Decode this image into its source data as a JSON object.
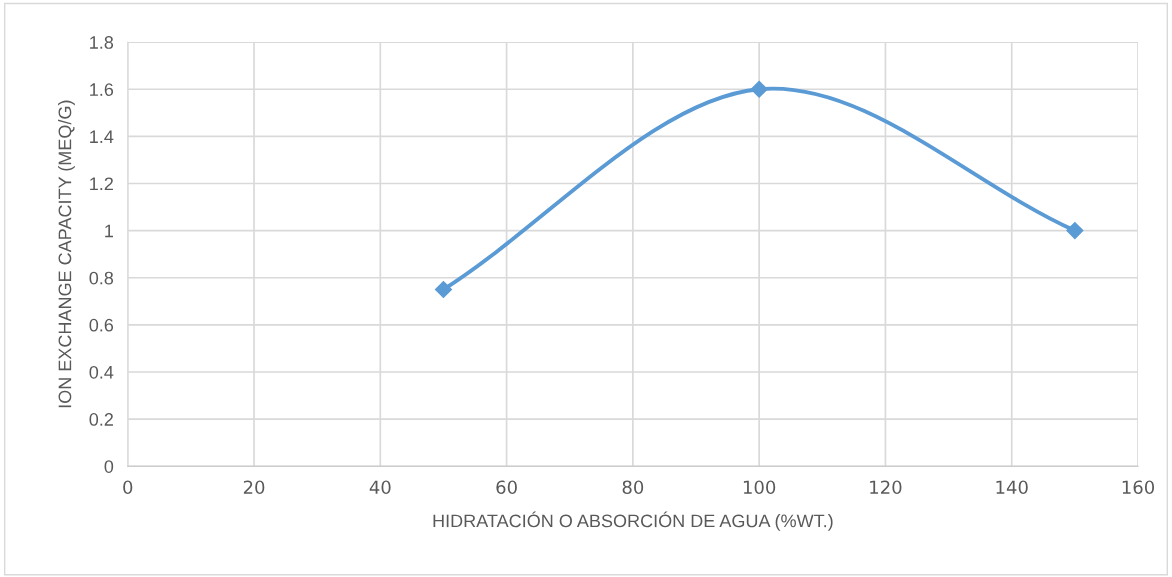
{
  "chart_data": {
    "type": "line",
    "xlabel": "HIDRATACIÓN O ABSORCIÓN DE AGUA (%WT.)",
    "ylabel": "ION EXCHANGE CAPACITY (MEQ/G)",
    "x": [
      50,
      100,
      150
    ],
    "series": [
      {
        "color": "#5b9bd5",
        "values": [
          0.75,
          1.6,
          1.0
        ]
      }
    ],
    "xlim": [
      0,
      160
    ],
    "xticks": [
      0,
      20,
      40,
      60,
      80,
      100,
      120,
      140,
      160
    ],
    "ylim": [
      0,
      1.8
    ],
    "yticks": [
      0,
      0.2,
      0.4,
      0.6,
      0.8,
      1,
      1.2,
      1.4,
      1.6,
      1.8
    ],
    "grid": true,
    "marker": "diamond",
    "line_style": "solid",
    "legend": false
  }
}
